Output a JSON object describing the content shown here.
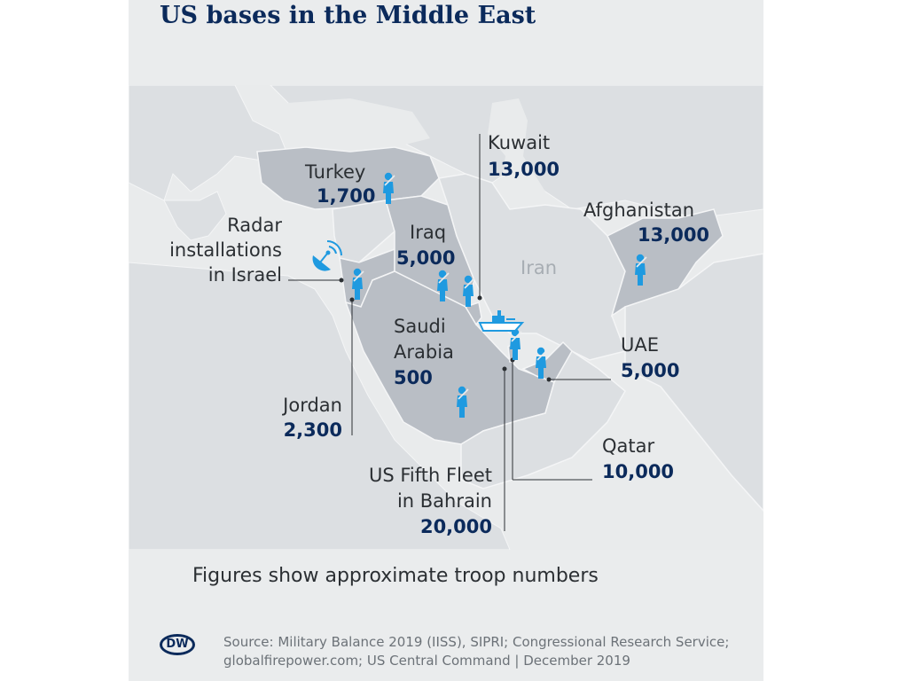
{
  "title": "US bases in the Middle East",
  "note": "Figures show approximate troop numbers",
  "source_line1": "Source: Military Balance 2019 (IISS), SIPRI; Congressional Research Service;",
  "source_line2": "globalfirepower.com; US Central Command | December 2019",
  "logo": "DW",
  "colors": {
    "title": "#0b2a5b",
    "numbers": "#0b2a5b",
    "icons": "#1f9ae0",
    "highlight_land": "#b9bec5",
    "land": "#dcdfe2",
    "sea": "#eaeced"
  },
  "map": {
    "country_labels": {
      "iran": "Iran"
    },
    "locations": [
      {
        "id": "turkey",
        "name": "Turkey",
        "troops": "1,700",
        "icon": "soldier-icon"
      },
      {
        "id": "israel",
        "name_lines": [
          "Radar",
          "installations",
          "in Israel"
        ],
        "icon": "radar-dish-icon"
      },
      {
        "id": "iraq",
        "name": "Iraq",
        "troops": "5,000",
        "icon": "soldier-icon"
      },
      {
        "id": "kuwait",
        "name": "Kuwait",
        "troops": "13,000",
        "icon": "soldier-icon"
      },
      {
        "id": "afghanistan",
        "name": "Afghanistan",
        "troops": "13,000",
        "icon": "soldier-icon"
      },
      {
        "id": "saudi",
        "name_lines": [
          "Saudi",
          "Arabia"
        ],
        "troops": "500",
        "icon": "soldier-icon"
      },
      {
        "id": "uae",
        "name": "UAE",
        "troops": "5,000",
        "icon": "soldier-icon"
      },
      {
        "id": "jordan",
        "name": "Jordan",
        "troops": "2,300",
        "icon": "soldier-icon"
      },
      {
        "id": "qatar",
        "name": "Qatar",
        "troops": "10,000",
        "icon": "soldier-icon"
      },
      {
        "id": "bahrain",
        "name_lines": [
          "US Fifth Fleet",
          "in Bahrain"
        ],
        "troops": "20,000",
        "icon": "ship-icon"
      }
    ]
  }
}
